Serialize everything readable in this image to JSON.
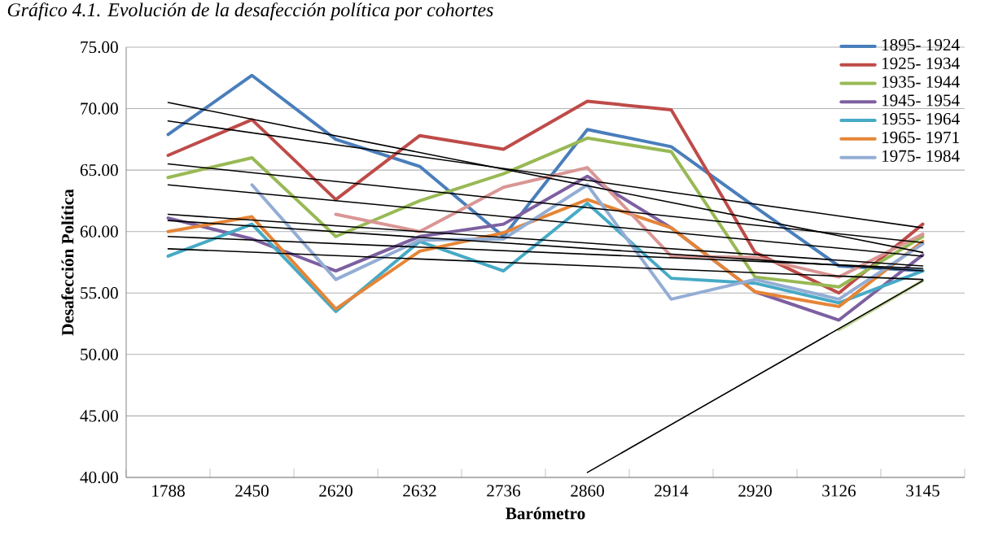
{
  "chart_data": {
    "type": "line",
    "title": "Gráfico 4.1. Evolución de la desafección política por cohortes",
    "xlabel": "Barómetro",
    "ylabel": "Desafección Política",
    "categories": [
      "1788",
      "2450",
      "2620",
      "2632",
      "2736",
      "2860",
      "2914",
      "2920",
      "3126",
      "3145"
    ],
    "ylim": [
      40,
      75
    ],
    "yticks": [
      {
        "value": 40,
        "label": "40.00"
      },
      {
        "value": 45,
        "label": "45.00"
      },
      {
        "value": 50,
        "label": "50.00"
      },
      {
        "value": 55,
        "label": "55.00"
      },
      {
        "value": 60,
        "label": "60.00"
      },
      {
        "value": 65,
        "label": "65.00"
      },
      {
        "value": 70,
        "label": "70.00"
      },
      {
        "value": 75,
        "label": "75.00"
      }
    ],
    "grid": "y",
    "legend": "top right",
    "marker": "none",
    "line_style": "solid",
    "series": [
      {
        "name": "1895- 1924",
        "color": "#4a7ebb",
        "values": [
          67.9,
          72.7,
          67.5,
          65.3,
          59.6,
          68.3,
          66.9,
          62.0,
          57.2,
          56.8
        ]
      },
      {
        "name": "1925- 1934",
        "color": "#be4b48",
        "values": [
          66.2,
          69.1,
          62.6,
          67.8,
          66.7,
          70.6,
          69.9,
          58.3,
          55.0,
          60.6
        ]
      },
      {
        "name": "1935- 1944",
        "color": "#98b954",
        "values": [
          64.4,
          66.0,
          59.6,
          62.5,
          64.7,
          67.6,
          66.5,
          56.3,
          55.5,
          59.6
        ]
      },
      {
        "name": "1945- 1954",
        "color": "#7d60a0",
        "values": [
          61.1,
          59.4,
          56.8,
          59.6,
          60.6,
          64.5,
          60.3,
          55.1,
          52.8,
          58.1
        ]
      },
      {
        "name": "1955- 1964",
        "color": "#46aac5",
        "values": [
          58.0,
          60.6,
          53.5,
          59.2,
          56.8,
          62.3,
          56.2,
          55.8,
          54.2,
          56.8
        ]
      },
      {
        "name": "1965- 1971",
        "color": "#e58537",
        "values": [
          60.0,
          61.2,
          53.7,
          58.4,
          59.9,
          62.6,
          60.3,
          55.1,
          53.9,
          59.2
        ]
      },
      {
        "name": "1975- 1984",
        "color": "#93add4",
        "values": [
          null,
          63.8,
          56.1,
          59.3,
          59.4,
          63.8,
          54.5,
          56.1,
          54.5,
          59.0
        ]
      },
      {
        "color": "#d99694",
        "values": [
          null,
          null,
          61.4,
          60.0,
          63.6,
          65.2,
          58.0,
          57.9,
          56.3,
          59.8
        ]
      },
      {
        "color": "#c3d69b",
        "values": [
          null,
          null,
          null,
          null,
          null,
          null,
          null,
          null,
          52.0,
          56.0
        ]
      },
      {
        "type": "line",
        "color": "#000000",
        "values": [
          70.5,
          null,
          null,
          null,
          null,
          null,
          null,
          null,
          null,
          58.3
        ]
      },
      {
        "type": "line",
        "color": "#000000",
        "values": [
          69.0,
          null,
          null,
          null,
          null,
          null,
          null,
          null,
          null,
          60.3
        ]
      },
      {
        "type": "line",
        "color": "#000000",
        "values": [
          65.5,
          null,
          null,
          null,
          null,
          null,
          null,
          null,
          null,
          59.1
        ]
      },
      {
        "type": "line",
        "color": "#000000",
        "values": [
          63.8,
          null,
          null,
          null,
          null,
          null,
          null,
          null,
          null,
          58.0
        ]
      },
      {
        "type": "line",
        "color": "#000000",
        "values": [
          61.4,
          null,
          null,
          null,
          null,
          null,
          null,
          null,
          null,
          57.2
        ]
      },
      {
        "type": "line",
        "color": "#000000",
        "values": [
          60.9,
          null,
          null,
          null,
          null,
          null,
          null,
          null,
          null,
          56.8
        ]
      },
      {
        "type": "line",
        "color": "#000000",
        "values": [
          59.6,
          null,
          null,
          null,
          null,
          null,
          null,
          null,
          null,
          57.0
        ]
      },
      {
        "type": "line",
        "color": "#000000",
        "values": [
          58.6,
          null,
          null,
          null,
          null,
          null,
          null,
          null,
          null,
          56.1
        ]
      },
      {
        "type": "line",
        "color": "#000000",
        "values": [
          null,
          null,
          null,
          null,
          null,
          40.4,
          null,
          null,
          null,
          56.0
        ]
      }
    ]
  }
}
